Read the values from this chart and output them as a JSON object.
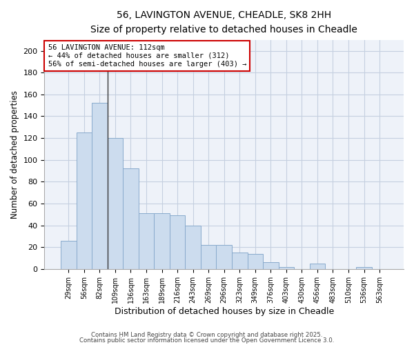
{
  "title_line1": "56, LAVINGTON AVENUE, CHEADLE, SK8 2HH",
  "title_line2": "Size of property relative to detached houses in Cheadle",
  "xlabel": "Distribution of detached houses by size in Cheadle",
  "ylabel": "Number of detached properties",
  "bar_color": "#ccdcee",
  "bar_edge_color": "#88aacc",
  "vline_color": "#333333",
  "annotation_box_edgecolor": "#cc0000",
  "annotation_text_line1": "56 LAVINGTON AVENUE: 112sqm",
  "annotation_text_line2": "← 44% of detached houses are smaller (312)",
  "annotation_text_line3": "56% of semi-detached houses are larger (403) →",
  "grid_color": "#c5cfe0",
  "background_color": "#eef2f9",
  "fig_background_color": "#ffffff",
  "categories": [
    "29sqm",
    "56sqm",
    "82sqm",
    "109sqm",
    "136sqm",
    "163sqm",
    "189sqm",
    "216sqm",
    "243sqm",
    "269sqm",
    "296sqm",
    "323sqm",
    "349sqm",
    "376sqm",
    "403sqm",
    "430sqm",
    "456sqm",
    "483sqm",
    "510sqm",
    "536sqm",
    "563sqm"
  ],
  "values": [
    26,
    125,
    152,
    120,
    92,
    51,
    51,
    49,
    40,
    22,
    22,
    15,
    14,
    6,
    2,
    0,
    5,
    0,
    0,
    2,
    0
  ],
  "ylim": [
    0,
    210
  ],
  "yticks": [
    0,
    20,
    40,
    60,
    80,
    100,
    120,
    140,
    160,
    180,
    200
  ],
  "vline_index": 2.5,
  "footer_line1": "Contains HM Land Registry data © Crown copyright and database right 2025.",
  "footer_line2": "Contains public sector information licensed under the Open Government Licence 3.0."
}
